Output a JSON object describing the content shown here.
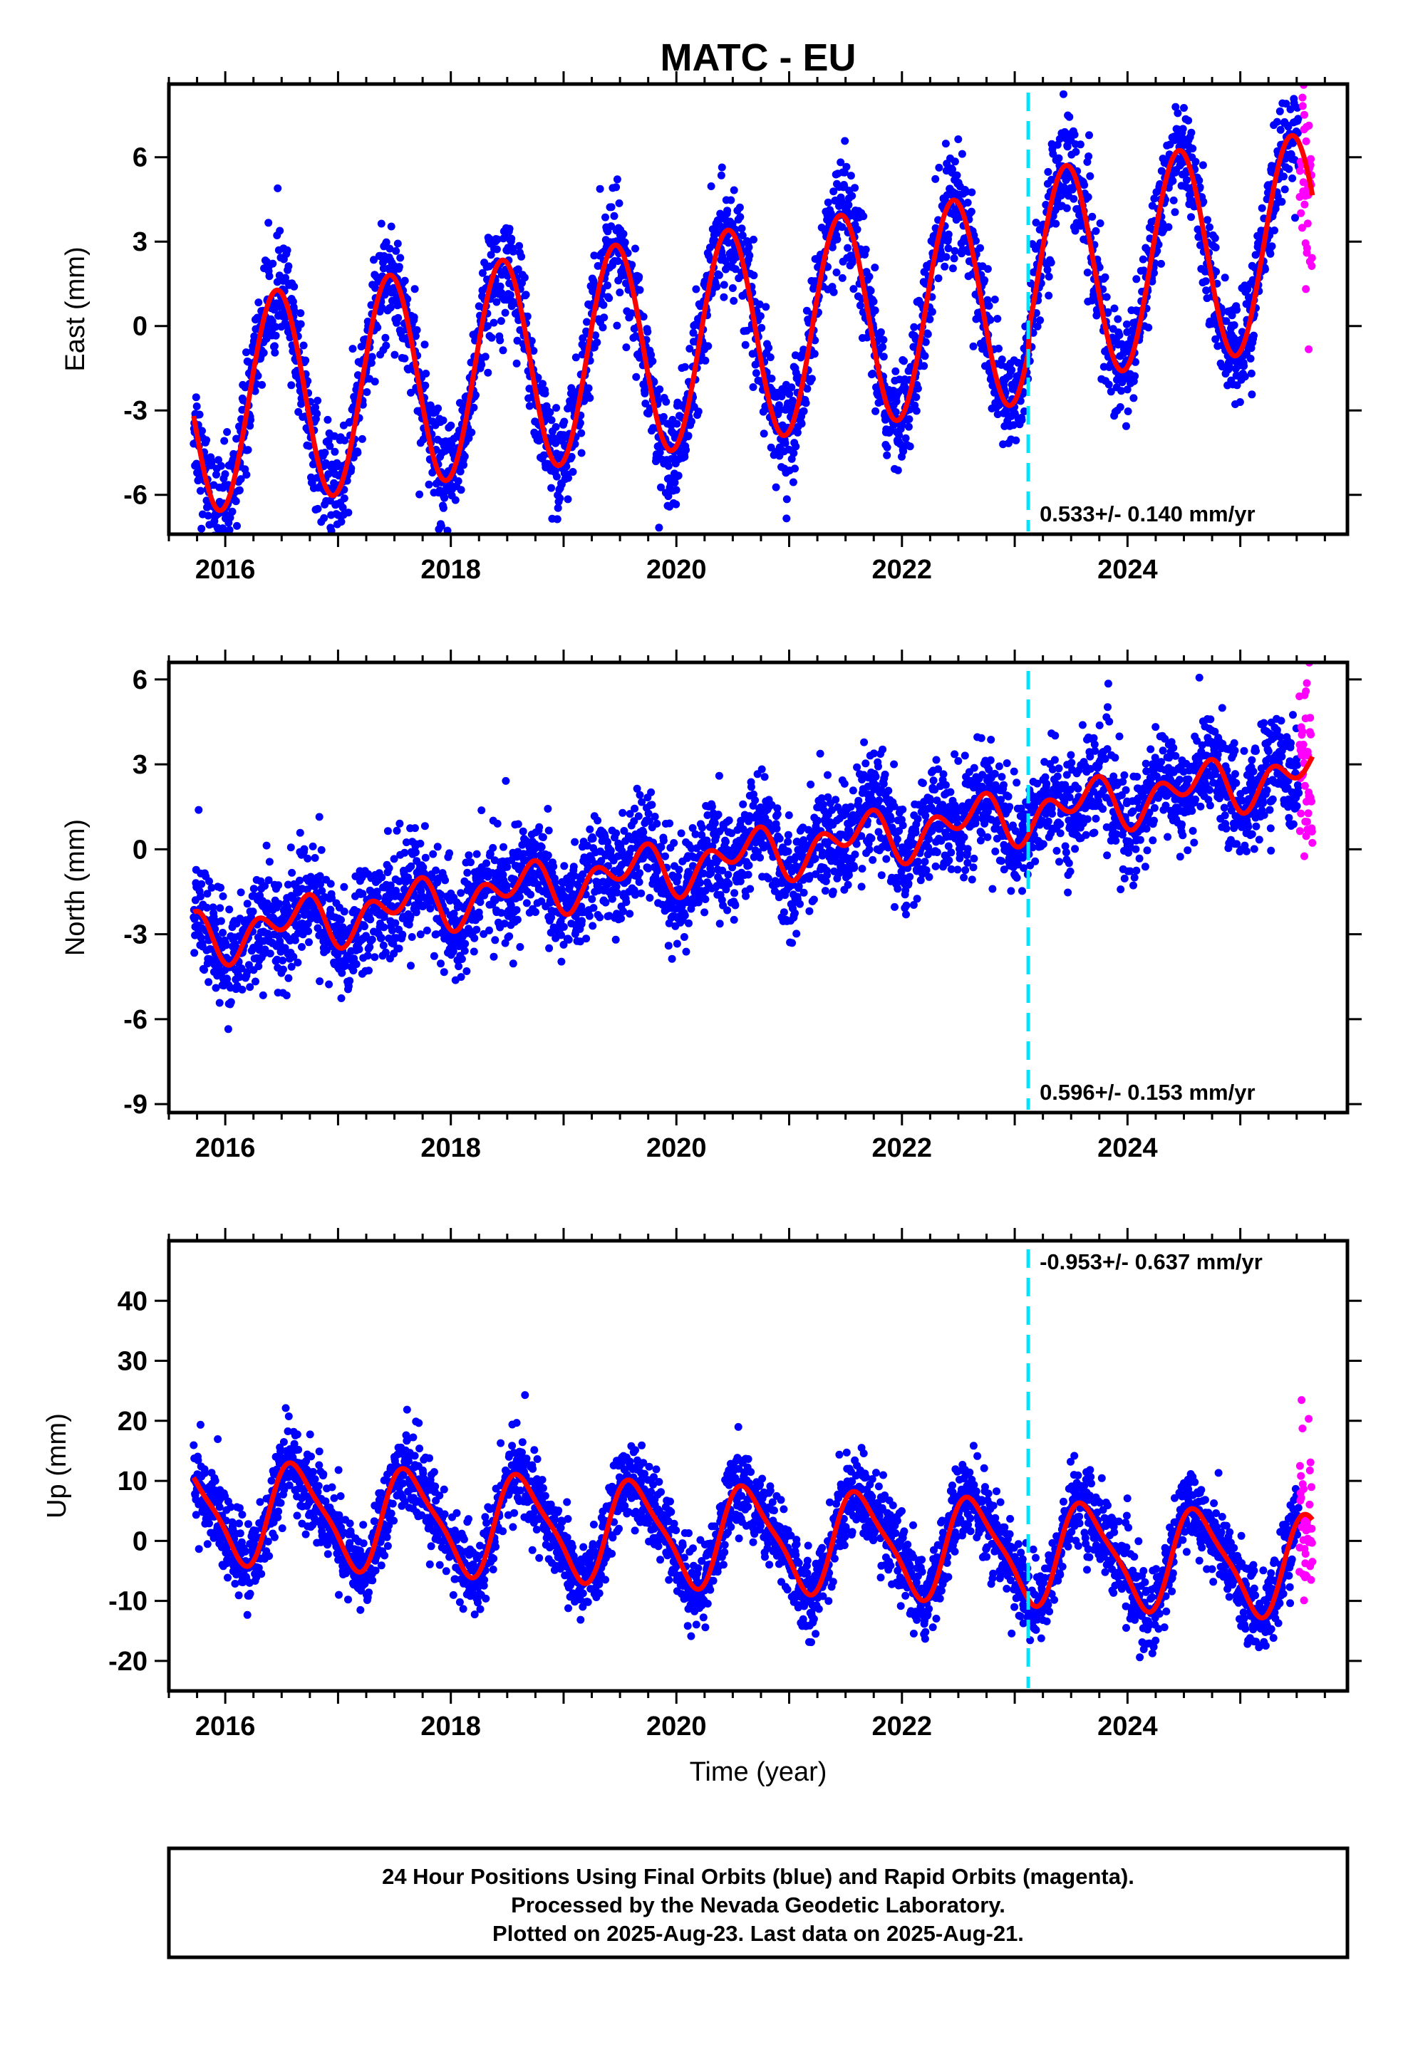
{
  "figure": {
    "title": "MATC - EU",
    "caption": [
      "24 Hour Positions Using Final Orbits (blue) and Rapid Orbits (magenta).",
      "Processed by the Nevada Geodetic Laboratory.",
      "Plotted on 2025-Aug-23. Last data on 2025-Aug-21."
    ],
    "colors": {
      "final_orbits": "#0000ff",
      "rapid_orbits": "#ff00ff",
      "model_fit": "#ff0000",
      "equipment_change": "#00e5ff"
    }
  },
  "chart_data": [
    {
      "type": "scatter",
      "component": "east",
      "ylabel": "East (mm)",
      "xlabel": "",
      "xlim": [
        2015.5,
        2025.95
      ],
      "ylim": [
        -7.4,
        8.6
      ],
      "x_ticks": [
        2016,
        2018,
        2020,
        2022,
        2024
      ],
      "y_ticks": [
        6,
        3,
        0,
        -3,
        -6
      ],
      "grid": false,
      "rate_label": "0.533+/- 0.140 mm/yr",
      "rate_label_position": "bottom-right",
      "equipment_change_year": 2023.12,
      "data_start": 2015.72,
      "final_end": 2025.52,
      "rapid_end": 2025.64,
      "fit": {
        "rate_mm_per_yr": 0.533,
        "value_at_reference": -0.3,
        "reference_year": 2020.6,
        "offset_at_equipment_change": 0.7,
        "annual_cos": -3.65,
        "annual_sin": 1.0,
        "semiannual_cos": 0.0,
        "semiannual_sin": 0.0,
        "scatter_sd": 0.95
      },
      "series": [
        {
          "name": "Final Orbits (blue)",
          "color": "#0000ff"
        },
        {
          "name": "Rapid Orbits (magenta)",
          "color": "#ff00ff"
        },
        {
          "name": "",
          "color": "#ff0000"
        }
      ]
    },
    {
      "type": "scatter",
      "component": "north",
      "ylabel": "North (mm)",
      "xlabel": "",
      "xlim": [
        2015.5,
        2025.95
      ],
      "ylim": [
        -9.3,
        6.6
      ],
      "x_ticks": [
        2016,
        2018,
        2020,
        2022,
        2024
      ],
      "y_ticks": [
        6,
        3,
        0,
        -3,
        -6,
        -9
      ],
      "grid": false,
      "rate_label": "0.596+/- 0.153 mm/yr",
      "rate_label_position": "bottom-right",
      "equipment_change_year": 2023.12,
      "data_start": 2015.72,
      "final_end": 2025.52,
      "rapid_end": 2025.64,
      "fit": {
        "rate_mm_per_yr": 0.596,
        "value_at_reference": -0.25,
        "reference_year": 2020.6,
        "offset_at_equipment_change": 0.0,
        "annual_cos": -0.45,
        "annual_sin": -0.35,
        "semiannual_cos": -0.6,
        "semiannual_sin": -0.15,
        "scatter_sd": 0.95
      },
      "series": [
        {
          "name": "Final Orbits (blue)",
          "color": "#0000ff"
        },
        {
          "name": "Rapid Orbits (magenta)",
          "color": "#ff00ff"
        },
        {
          "name": "",
          "color": "#ff0000"
        }
      ]
    },
    {
      "type": "scatter",
      "component": "up",
      "ylabel": "Up (mm)",
      "xlabel": "Time (year)",
      "xlim": [
        2015.5,
        2025.95
      ],
      "ylim": [
        -25.0,
        50.0
      ],
      "x_ticks": [
        2016,
        2018,
        2020,
        2022,
        2024
      ],
      "y_ticks": [
        40,
        30,
        20,
        10,
        0,
        -10,
        -20
      ],
      "grid": false,
      "rate_label": "-0.953+/- 0.637 mm/yr",
      "rate_label_position": "top-right",
      "equipment_change_year": 2023.12,
      "data_start": 2015.72,
      "final_end": 2025.52,
      "rapid_end": 2025.64,
      "fit": {
        "rate_mm_per_yr": -0.953,
        "value_at_reference": 0.6,
        "reference_year": 2020.6,
        "offset_at_equipment_change": 0.0,
        "annual_cos": -5.2,
        "annual_sin": -6.2,
        "semiannual_cos": 1.9,
        "semiannual_sin": 0.0,
        "scatter_sd": 3.4
      },
      "series": [
        {
          "name": "Final Orbits (blue)",
          "color": "#0000ff"
        },
        {
          "name": "Rapid Orbits (magenta)",
          "color": "#ff00ff"
        },
        {
          "name": "",
          "color": "#ff0000"
        }
      ]
    }
  ]
}
